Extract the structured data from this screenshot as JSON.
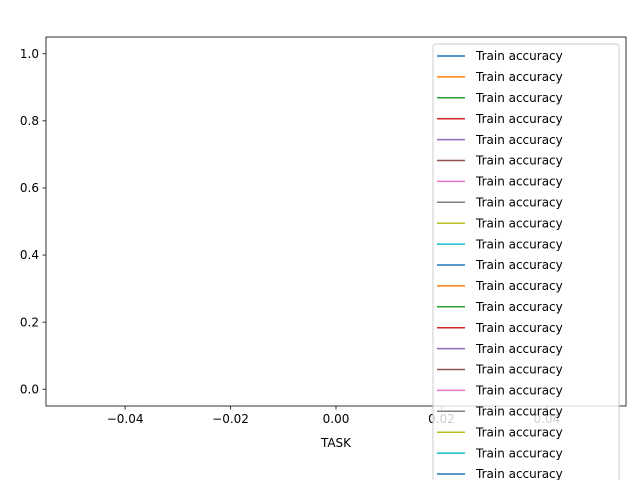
{
  "chart_data": {
    "type": "line",
    "title": "",
    "xlabel": "TASK",
    "ylabel": "",
    "xlim": [
      -0.055,
      0.055
    ],
    "ylim": [
      -0.05,
      1.05
    ],
    "x_ticks": [
      -0.04,
      -0.02,
      0.0,
      0.02,
      0.04
    ],
    "x_tick_labels": [
      "−0.04",
      "−0.02",
      "0.00",
      "0.02",
      "0.04"
    ],
    "y_ticks": [
      0.0,
      0.2,
      0.4,
      0.6,
      0.8,
      1.0
    ],
    "y_tick_labels": [
      "0.0",
      "0.2",
      "0.4",
      "0.6",
      "0.8",
      "1.0"
    ],
    "grid": false,
    "legend_position": "upper right",
    "series": [
      {
        "name": "Train accuracy",
        "color": "#1f77b4",
        "x": [],
        "y": []
      },
      {
        "name": "Train accuracy",
        "color": "#ff7f0e",
        "x": [],
        "y": []
      },
      {
        "name": "Train accuracy",
        "color": "#2ca02c",
        "x": [],
        "y": []
      },
      {
        "name": "Train accuracy",
        "color": "#d62728",
        "x": [],
        "y": []
      },
      {
        "name": "Train accuracy",
        "color": "#9467bd",
        "x": [],
        "y": []
      },
      {
        "name": "Train accuracy",
        "color": "#8c564b",
        "x": [],
        "y": []
      },
      {
        "name": "Train accuracy",
        "color": "#e377c2",
        "x": [],
        "y": []
      },
      {
        "name": "Train accuracy",
        "color": "#7f7f7f",
        "x": [],
        "y": []
      },
      {
        "name": "Train accuracy",
        "color": "#bcbd22",
        "x": [],
        "y": []
      },
      {
        "name": "Train accuracy",
        "color": "#17becf",
        "x": [],
        "y": []
      },
      {
        "name": "Train accuracy",
        "color": "#1f77b4",
        "x": [],
        "y": []
      },
      {
        "name": "Train accuracy",
        "color": "#ff7f0e",
        "x": [],
        "y": []
      },
      {
        "name": "Train accuracy",
        "color": "#2ca02c",
        "x": [],
        "y": []
      },
      {
        "name": "Train accuracy",
        "color": "#d62728",
        "x": [],
        "y": []
      },
      {
        "name": "Train accuracy",
        "color": "#9467bd",
        "x": [],
        "y": []
      },
      {
        "name": "Train accuracy",
        "color": "#8c564b",
        "x": [],
        "y": []
      },
      {
        "name": "Train accuracy",
        "color": "#e377c2",
        "x": [],
        "y": []
      },
      {
        "name": "Train accuracy",
        "color": "#7f7f7f",
        "x": [],
        "y": []
      },
      {
        "name": "Train accuracy",
        "color": "#bcbd22",
        "x": [],
        "y": []
      },
      {
        "name": "Train accuracy",
        "color": "#17becf",
        "x": [],
        "y": []
      },
      {
        "name": "Train accuracy",
        "color": "#1f77b4",
        "x": [],
        "y": []
      }
    ]
  }
}
